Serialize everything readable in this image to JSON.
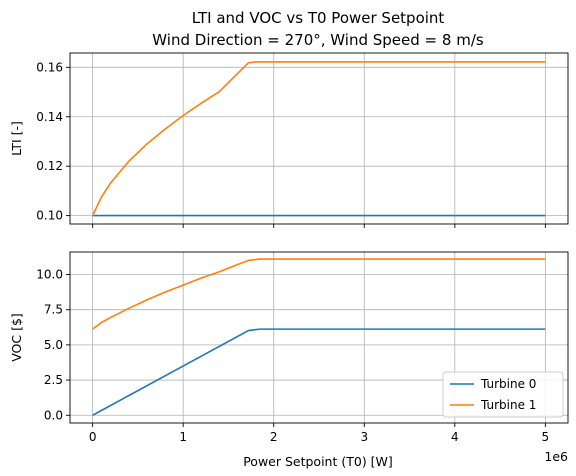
{
  "chart_data": [
    {
      "type": "line",
      "panel": "top",
      "title_line1": "LTI and VOC vs T0 Power Setpoint",
      "title_line2": "Wind Direction = 270°, Wind Speed = 8 m/s",
      "ylabel": "LTI [-]",
      "xlim": [
        -0.25,
        5.25
      ],
      "ylim": [
        0.0966,
        0.1658
      ],
      "xticks": [
        0,
        1,
        2,
        3,
        4,
        5
      ],
      "yticks": [
        0.1,
        0.12,
        0.14,
        0.16
      ],
      "ytick_labels": [
        "0.10",
        "0.12",
        "0.14",
        "0.16"
      ],
      "grid": true,
      "series": [
        {
          "color": "#1f77b4",
          "x": [
            0,
            5
          ],
          "y": [
            0.1,
            0.1
          ]
        },
        {
          "color": "#ff7f0e",
          "x": [
            0,
            0.1,
            0.2,
            0.4,
            0.6,
            0.8,
            1.0,
            1.2,
            1.4,
            1.6,
            1.72,
            1.8,
            2.0,
            3.0,
            4.0,
            5.0
          ],
          "y": [
            0.1,
            0.1077,
            0.1133,
            0.122,
            0.129,
            0.135,
            0.1405,
            0.1455,
            0.1502,
            0.1575,
            0.1618,
            0.1622,
            0.1622,
            0.1622,
            0.1622,
            0.1622
          ]
        }
      ]
    },
    {
      "type": "line",
      "panel": "bottom",
      "xlabel": "Power Setpoint (T0) [W]",
      "ylabel": "VOC [$]",
      "offset_text": "1e6",
      "xlim": [
        -0.25,
        5.25
      ],
      "ylim": [
        -0.55,
        11.6
      ],
      "xticks": [
        0,
        1,
        2,
        3,
        4,
        5
      ],
      "xtick_labels": [
        "0",
        "1",
        "2",
        "3",
        "4",
        "5"
      ],
      "yticks": [
        0.0,
        2.5,
        5.0,
        7.5,
        10.0
      ],
      "ytick_labels": [
        "0.0",
        "2.5",
        "5.0",
        "7.5",
        "10.0"
      ],
      "grid": true,
      "legend_position": "lower-right",
      "series": [
        {
          "name": "Turbine 0",
          "color": "#1f77b4",
          "x": [
            0,
            1.72,
            1.85,
            5.0
          ],
          "y": [
            0.0,
            6.02,
            6.12,
            6.12
          ]
        },
        {
          "name": "Turbine 1",
          "color": "#ff7f0e",
          "x": [
            0,
            0.1,
            0.2,
            0.4,
            0.6,
            0.8,
            1.0,
            1.2,
            1.4,
            1.6,
            1.72,
            1.85,
            2.0,
            3.0,
            4.0,
            5.0
          ],
          "y": [
            6.12,
            6.6,
            6.95,
            7.6,
            8.2,
            8.75,
            9.25,
            9.75,
            10.2,
            10.7,
            11.0,
            11.1,
            11.1,
            11.1,
            11.1,
            11.1
          ]
        }
      ]
    }
  ]
}
